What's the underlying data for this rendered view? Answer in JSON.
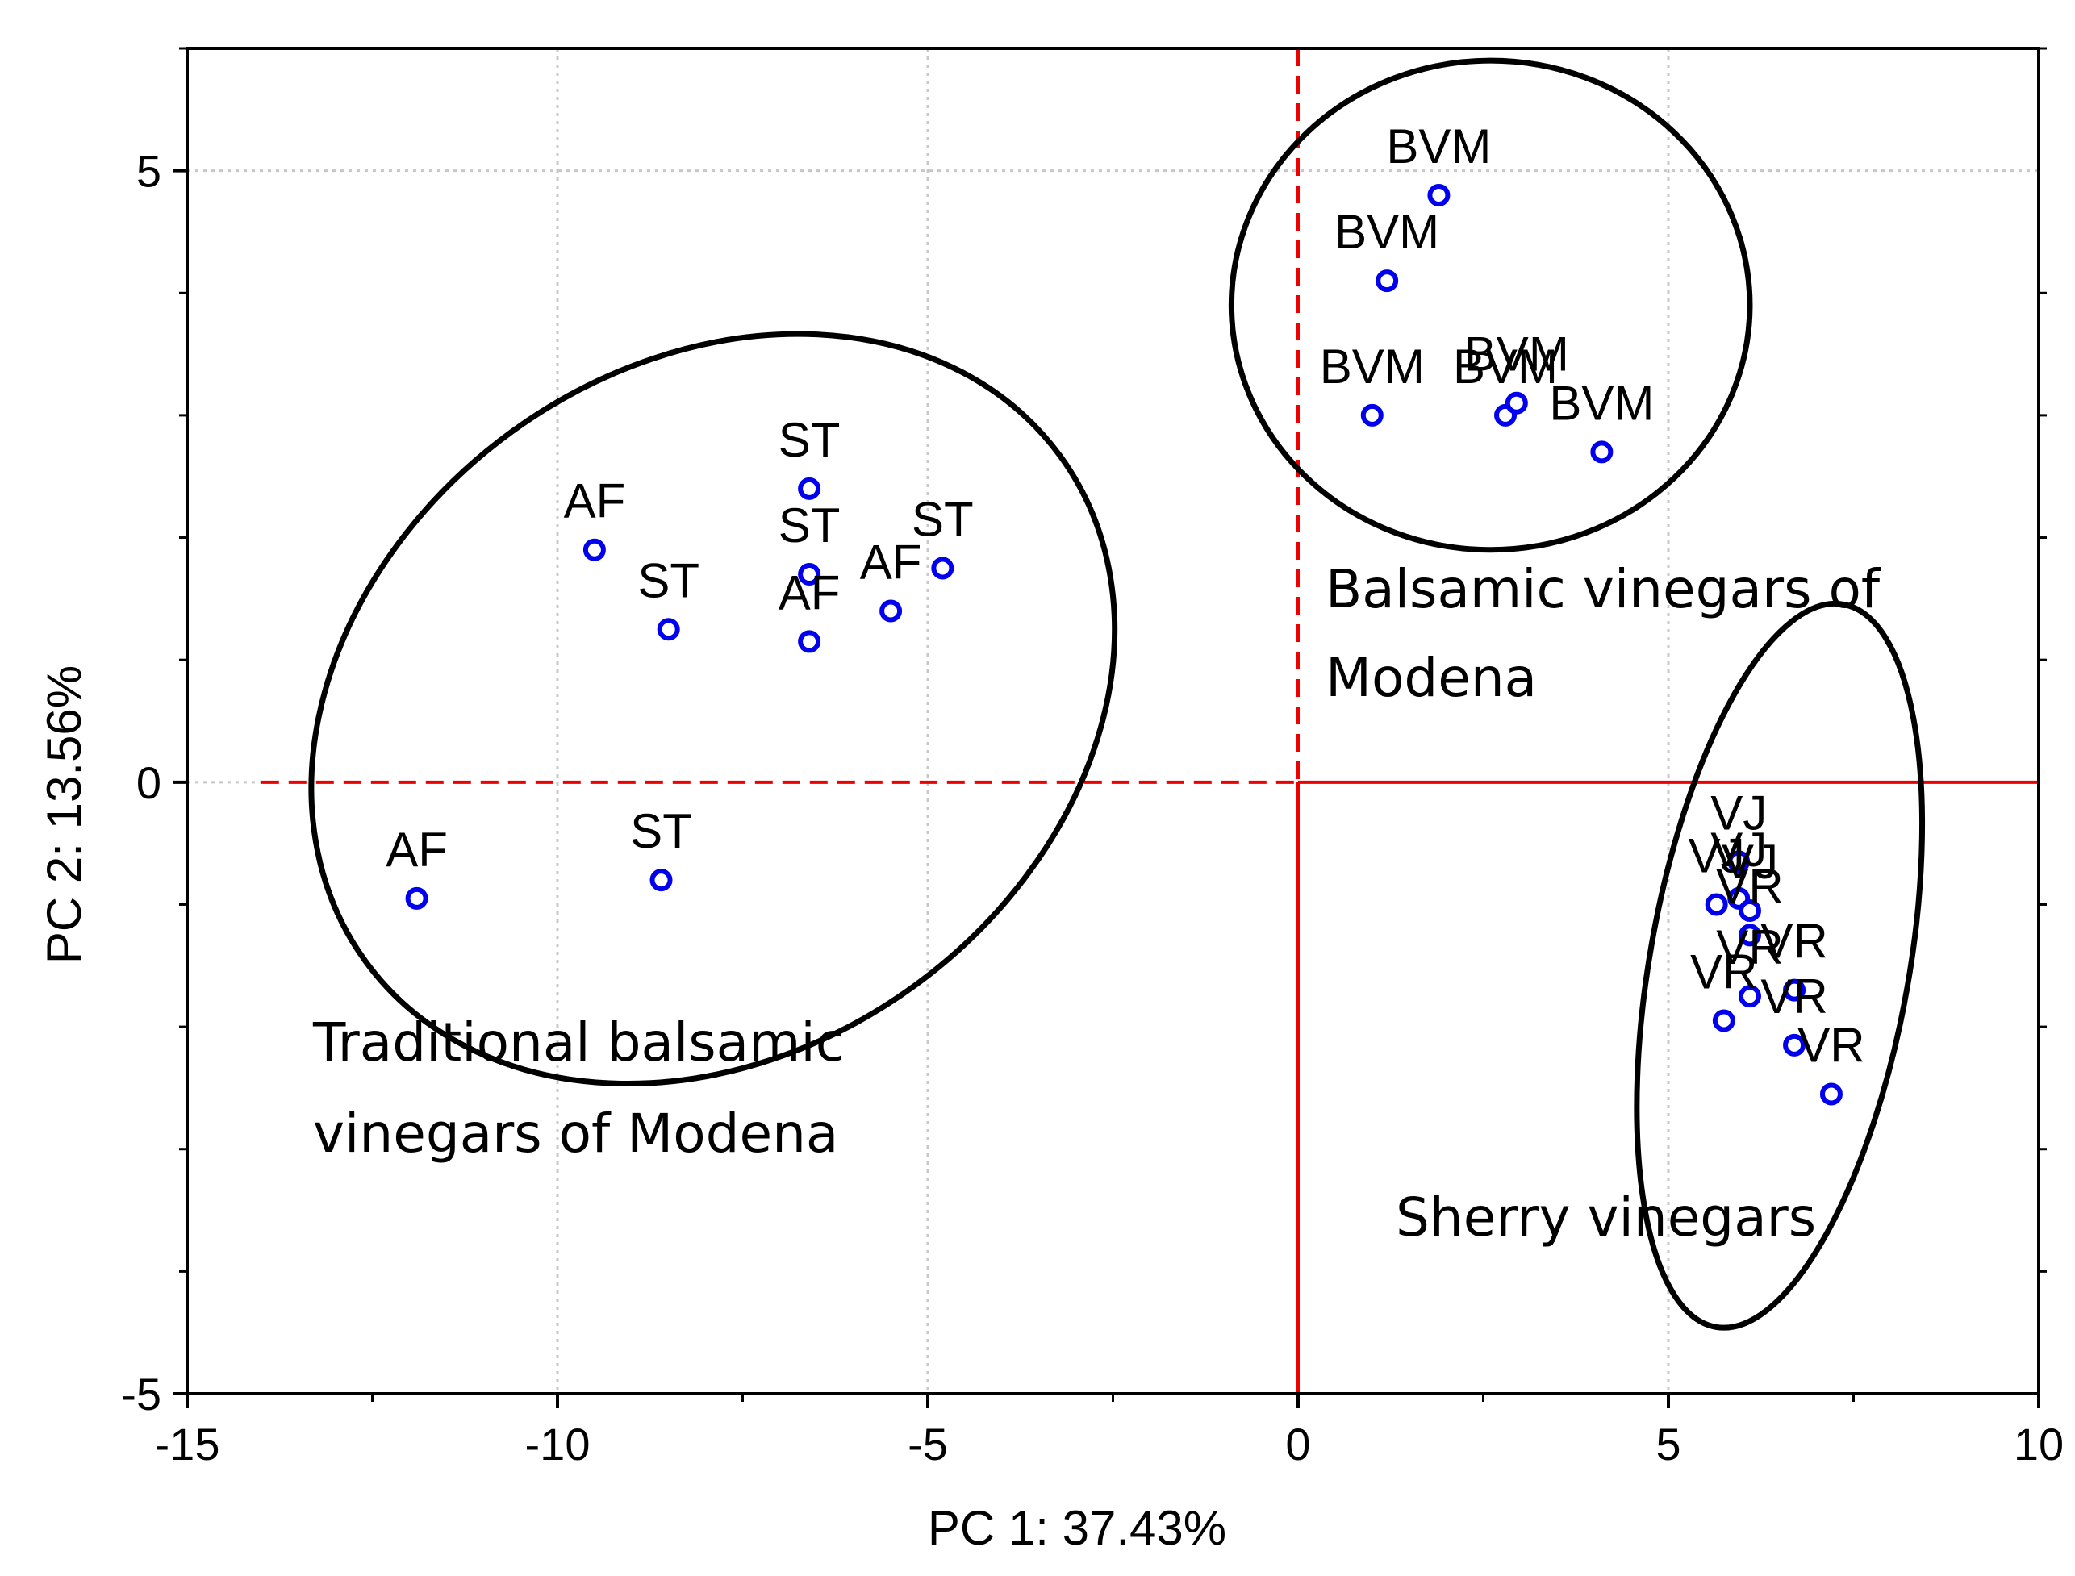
{
  "chart_data": {
    "type": "scatter",
    "title": "",
    "xlabel": "PC 1: 37.43%",
    "ylabel": "PC 2: 13.56%",
    "xlim": [
      -15,
      10
    ],
    "ylim": [
      -5,
      6
    ],
    "xticks": [
      -15,
      -10,
      -5,
      0,
      5,
      10
    ],
    "yticks": [
      -5,
      0,
      5
    ],
    "grid": true,
    "colors": {
      "marker": "#0000ee",
      "reference": "#ee0000",
      "ellipse": "#000000",
      "grid": "#c8c8c8"
    },
    "points": [
      {
        "label": "AF",
        "x": -9.5,
        "y": 1.9
      },
      {
        "label": "ST",
        "x": -8.5,
        "y": 1.25
      },
      {
        "label": "ST",
        "x": -6.6,
        "y": 2.4
      },
      {
        "label": "ST",
        "x": -6.6,
        "y": 1.7
      },
      {
        "label": "AF",
        "x": -6.6,
        "y": 1.15
      },
      {
        "label": "AF",
        "x": -5.5,
        "y": 1.4
      },
      {
        "label": "ST",
        "x": -4.8,
        "y": 1.75
      },
      {
        "label": "AF",
        "x": -11.9,
        "y": -0.95
      },
      {
        "label": "ST",
        "x": -8.6,
        "y": -0.8
      },
      {
        "label": "BVM",
        "x": 1.9,
        "y": 4.8
      },
      {
        "label": "BVM",
        "x": 1.2,
        "y": 4.1
      },
      {
        "label": "BVM",
        "x": 1.0,
        "y": 3.0
      },
      {
        "label": "BVM",
        "x": 2.8,
        "y": 3.0
      },
      {
        "label": "BVM",
        "x": 2.95,
        "y": 3.1
      },
      {
        "label": "BVM",
        "x": 4.1,
        "y": 2.7
      },
      {
        "label": "VJ",
        "x": 5.95,
        "y": -0.65
      },
      {
        "label": "VJ",
        "x": 5.65,
        "y": -1.0
      },
      {
        "label": "VJ",
        "x": 5.95,
        "y": -0.95
      },
      {
        "label": "VJ",
        "x": 6.1,
        "y": -1.05
      },
      {
        "label": "VR",
        "x": 6.1,
        "y": -1.25
      },
      {
        "label": "VR",
        "x": 6.7,
        "y": -1.7
      },
      {
        "label": "VR",
        "x": 5.75,
        "y": -1.95
      },
      {
        "label": "VR",
        "x": 6.1,
        "y": -1.75
      },
      {
        "label": "VR",
        "x": 6.7,
        "y": -2.15
      },
      {
        "label": "VR",
        "x": 7.2,
        "y": -2.55
      }
    ],
    "groups": [
      {
        "label_lines": [
          "Traditional balsamic",
          "vinegars of Modena"
        ],
        "cx": -7.9,
        "cy": 0.6,
        "rx": 5.8,
        "ry": 2.8,
        "angle_deg": -36
      },
      {
        "label_lines": [
          "Balsamic vinegars of",
          "Modena"
        ],
        "cx": 2.6,
        "cy": 3.9,
        "rx": 3.5,
        "ry": 2.0,
        "angle_deg": 0
      },
      {
        "label_lines": [
          "Sherry vinegars"
        ],
        "cx": 6.5,
        "cy": -1.5,
        "rx": 1.75,
        "ry": 3.0,
        "angle_deg": 10
      }
    ],
    "annotations": [
      "Traditional balsamic vinegars of Modena",
      "Balsamic vinegars of Modena",
      "Sherry vinegars"
    ]
  }
}
